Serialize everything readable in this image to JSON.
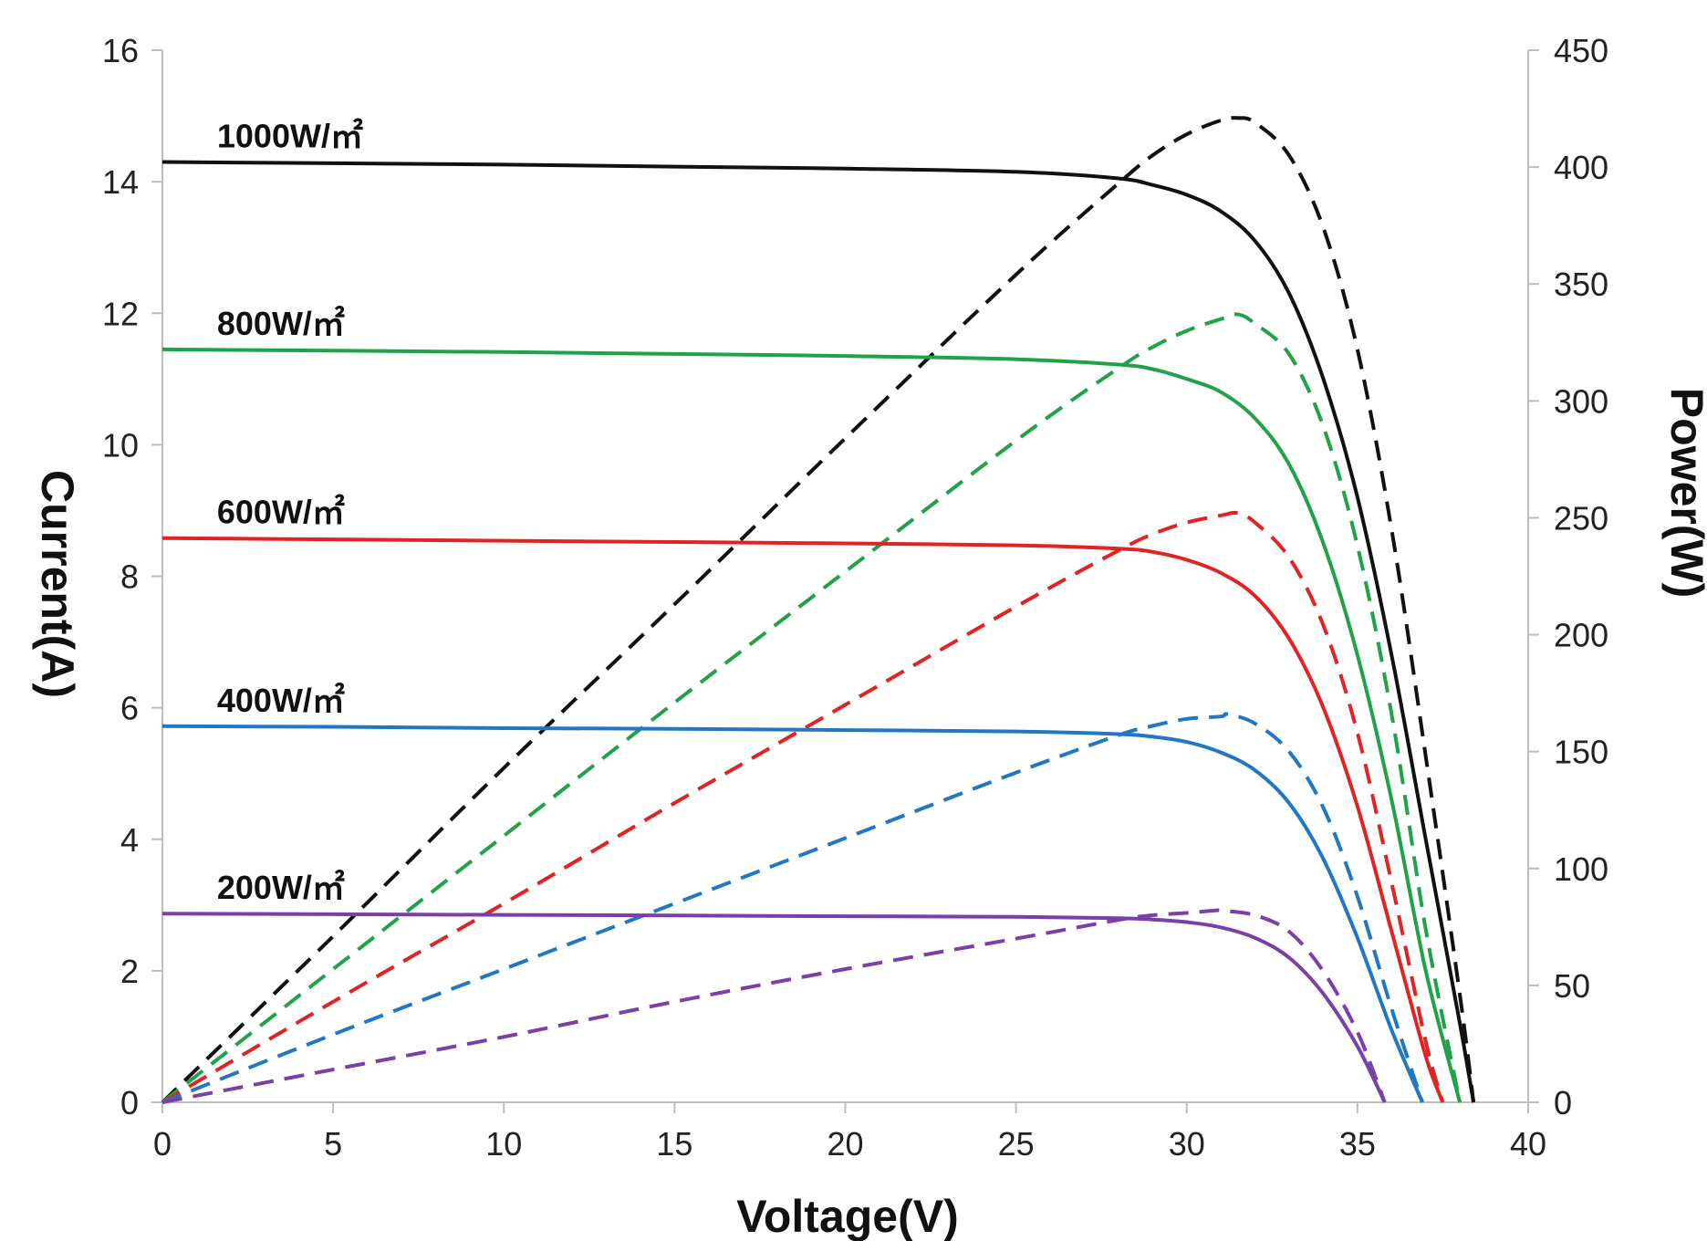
{
  "chart_data": {
    "type": "line",
    "title": "",
    "xlabel": "Voltage(V)",
    "ylabel": "Current(A)",
    "y2label": "Power(W)",
    "xlim": [
      0,
      40
    ],
    "ylim": [
      0,
      16
    ],
    "y2lim": [
      0,
      450
    ],
    "xticks": [
      "0",
      "5",
      "10",
      "15",
      "20",
      "25",
      "30",
      "35",
      "40"
    ],
    "yticks": [
      "0",
      "2",
      "4",
      "6",
      "8",
      "10",
      "12",
      "14",
      "16"
    ],
    "y2ticks": [
      "0",
      "50",
      "100",
      "150",
      "200",
      "250",
      "300",
      "350",
      "400",
      "450"
    ],
    "grid": false,
    "legend": "none",
    "series": [
      {
        "name": "1000W/㎡",
        "color": "#111111",
        "current": {
          "x": [
            0,
            5,
            10,
            15,
            20,
            25,
            28,
            29,
            30,
            31,
            32,
            33,
            34,
            35,
            36,
            37,
            38,
            38.4
          ],
          "y": [
            14.3,
            14.28,
            14.26,
            14.23,
            14.2,
            14.15,
            14.05,
            13.95,
            13.8,
            13.55,
            13.1,
            12.3,
            11.0,
            9.2,
            6.8,
            4.0,
            1.2,
            0
          ]
        },
        "power": {
          "x": [
            0,
            5,
            10,
            15,
            20,
            25,
            28,
            29,
            30,
            31,
            31.5,
            32,
            33,
            34,
            35,
            36,
            37,
            38,
            38.4
          ],
          "y": [
            0,
            71,
            143,
            213,
            284,
            354,
            393,
            405,
            414,
            420,
            421,
            419,
            405,
            374,
            322,
            245,
            148,
            46,
            0
          ]
        }
      },
      {
        "name": "800W/㎡",
        "color": "#21a24a",
        "current": {
          "x": [
            0,
            5,
            10,
            15,
            20,
            25,
            28,
            29,
            30,
            31,
            32,
            33,
            34,
            35,
            36,
            37,
            38
          ],
          "y": [
            11.45,
            11.43,
            11.41,
            11.38,
            11.35,
            11.3,
            11.22,
            11.15,
            11.0,
            10.8,
            10.4,
            9.7,
            8.5,
            6.8,
            4.6,
            2.0,
            0
          ]
        },
        "power": {
          "x": [
            0,
            5,
            10,
            15,
            20,
            25,
            28,
            29,
            30,
            31,
            31.5,
            32,
            33,
            34,
            35,
            36,
            37,
            38
          ],
          "y": [
            0,
            57,
            114,
            171,
            227,
            283,
            314,
            323,
            330,
            335,
            337,
            333,
            320,
            289,
            238,
            166,
            74,
            0
          ]
        }
      },
      {
        "name": "600W/㎡",
        "color": "#e02424",
        "current": {
          "x": [
            0,
            5,
            10,
            15,
            20,
            25,
            28,
            29,
            30,
            31,
            32,
            33,
            34,
            35,
            36,
            37,
            37.5
          ],
          "y": [
            8.58,
            8.56,
            8.54,
            8.52,
            8.5,
            8.47,
            8.42,
            8.37,
            8.25,
            8.05,
            7.7,
            7.05,
            6.0,
            4.5,
            2.6,
            0.7,
            0
          ]
        },
        "power": {
          "x": [
            0,
            5,
            10,
            15,
            20,
            25,
            28,
            29,
            30,
            31,
            31.5,
            32,
            33,
            34,
            35,
            36,
            37,
            37.5
          ],
          "y": [
            0,
            43,
            85,
            128,
            170,
            212,
            236,
            243,
            248,
            251,
            252,
            248,
            233,
            204,
            158,
            94,
            26,
            0
          ]
        }
      },
      {
        "name": "400W/㎡",
        "color": "#1f78c1",
        "current": {
          "x": [
            0,
            5,
            10,
            15,
            20,
            25,
            28,
            29,
            30,
            31,
            32,
            33,
            34,
            35,
            36,
            36.9
          ],
          "y": [
            5.72,
            5.71,
            5.69,
            5.68,
            5.66,
            5.64,
            5.6,
            5.56,
            5.48,
            5.32,
            5.05,
            4.55,
            3.7,
            2.5,
            1.1,
            0
          ]
        },
        "power": {
          "x": [
            0,
            5,
            10,
            15,
            20,
            25,
            28,
            29,
            30,
            31,
            31.2,
            32,
            33,
            34,
            35,
            36,
            36.9
          ],
          "y": [
            0,
            29,
            57,
            85,
            113,
            141,
            157,
            161,
            164,
            165,
            166,
            162,
            150,
            126,
            88,
            40,
            0
          ]
        }
      },
      {
        "name": "200W/㎡",
        "color": "#7b3fa8",
        "current": {
          "x": [
            0,
            5,
            10,
            15,
            20,
            25,
            28,
            29,
            30,
            31,
            32,
            33,
            34,
            35,
            35.8
          ],
          "y": [
            2.87,
            2.86,
            2.85,
            2.84,
            2.83,
            2.82,
            2.8,
            2.78,
            2.74,
            2.66,
            2.5,
            2.2,
            1.65,
            0.85,
            0
          ]
        },
        "power": {
          "x": [
            0,
            5,
            10,
            15,
            20,
            25,
            28,
            29,
            30,
            30.8,
            31,
            32,
            33,
            34,
            35,
            35.8
          ],
          "y": [
            0,
            14,
            28,
            43,
            57,
            70,
            78,
            80,
            81,
            82,
            82,
            80,
            73,
            56,
            30,
            0
          ]
        }
      }
    ]
  }
}
